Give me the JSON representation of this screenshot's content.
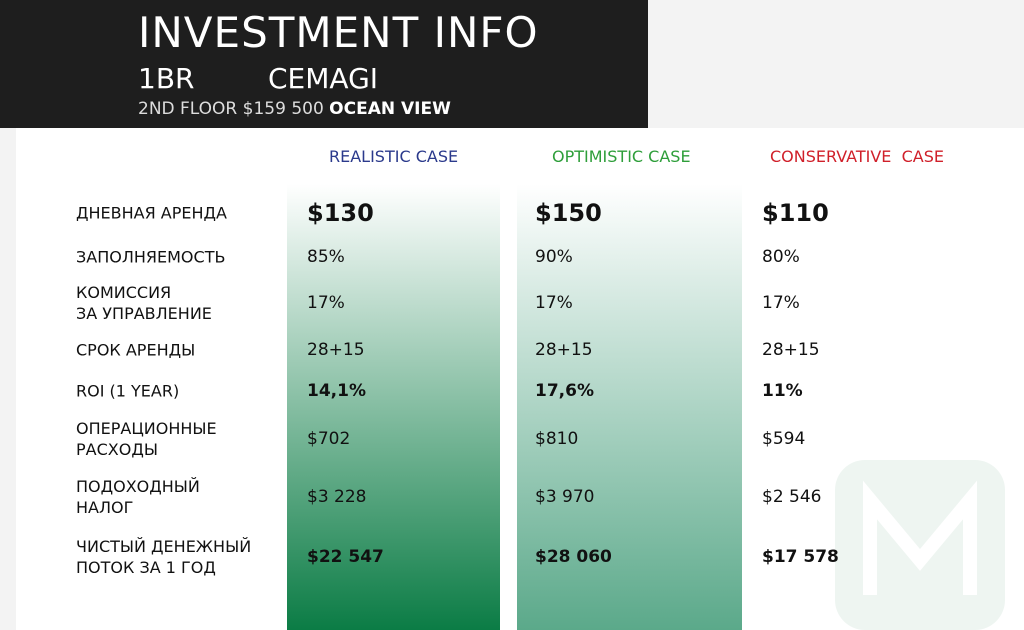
{
  "header": {
    "title": "INVESTMENT INFO",
    "unit": "1BR",
    "project": "CEMAGI",
    "details": "2ND FLOOR $159 500",
    "view": "OCEAN VIEW"
  },
  "table": {
    "columns": [
      "REALISTIC CASE",
      "OPTIMISTIC CASE",
      "CONSERVATIVE  CASE"
    ],
    "rows": [
      [
        "ДНЕВНАЯ АРЕНДА",
        "$130",
        "$150",
        "$110"
      ],
      [
        "ЗАПОЛНЯЕМОСТЬ",
        "85%",
        "90%",
        "80%"
      ],
      [
        "КОМИССИЯ\nЗА УПРАВЛЕНИЕ",
        "17%",
        "17%",
        "17%"
      ],
      [
        "СРОК АРЕНДЫ",
        "28+15",
        "28+15",
        "28+15"
      ],
      [
        "ROI (1 YEAR)",
        "14,1%",
        "17,6%",
        "11%"
      ],
      [
        "ОПЕРАЦИОННЫЕ\nРАСХОДЫ",
        "$702",
        "$810",
        "$594"
      ],
      [
        "ПОДОХОДНЫЙ\nНАЛОГ",
        "$3 228",
        "$3 970",
        "$2 546"
      ],
      [
        "ЧИСТЫЙ ДЕНЕЖНЫЙ\nПОТОК ЗА 1 ГОД",
        "$22 547",
        "$28 060",
        "$17 578"
      ]
    ]
  }
}
